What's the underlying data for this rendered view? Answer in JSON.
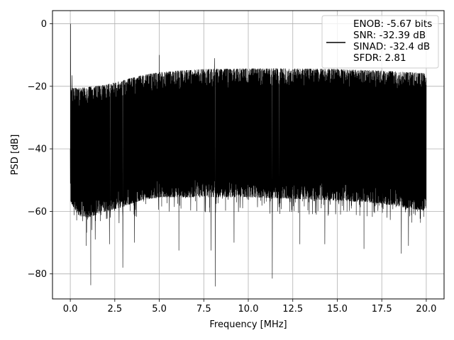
{
  "chart_data": {
    "type": "line",
    "title": "",
    "xlabel": "Frequency [MHz]",
    "ylabel": "PSD [dB]",
    "xlim": [
      -1.0,
      21.0
    ],
    "ylim": [
      -88.0,
      4.2
    ],
    "xticks": [
      0.0,
      2.5,
      5.0,
      7.5,
      10.0,
      12.5,
      15.0,
      17.5,
      20.0
    ],
    "xtick_labels": [
      "0.0",
      "2.5",
      "5.0",
      "7.5",
      "10.0",
      "12.5",
      "15.0",
      "17.5",
      "20.0"
    ],
    "yticks": [
      0,
      -20,
      -40,
      -60,
      -80
    ],
    "ytick_labels": [
      "0",
      "−20",
      "−40",
      "−60",
      "−80"
    ],
    "grid": true,
    "legend_position": "top-right",
    "legend_lines": [
      "ENOB: -5.67 bits",
      "SNR: -32.39 dB",
      "SINAD: -32.4 dB",
      "SFDR: 2.81"
    ],
    "series_color": "#000000",
    "series": [
      {
        "name": "ENOB: -5.67 bits",
        "envelope": {
          "x": [
            0.0,
            0.5,
            1.0,
            2.0,
            3.0,
            4.0,
            5.0,
            6.0,
            7.5,
            10.0,
            12.5,
            15.0,
            17.5,
            20.0
          ],
          "upper": [
            -20.5,
            -20.5,
            -20.2,
            -19.5,
            -18.0,
            -16.5,
            -15.5,
            -15.0,
            -14.5,
            -14.3,
            -14.3,
            -14.5,
            -15.0,
            -15.8
          ],
          "lower": [
            -57.0,
            -61.5,
            -62.0,
            -60.0,
            -58.5,
            -56.5,
            -55.5,
            -55.5,
            -55.5,
            -55.5,
            -56.0,
            -56.5,
            -57.5,
            -60.0
          ]
        },
        "peaks": [
          {
            "x": 0.02,
            "y": 0.0
          },
          {
            "x": 0.1,
            "y": -16.5
          },
          {
            "x": 5.0,
            "y": -10.0
          },
          {
            "x": 8.1,
            "y": -11.0
          }
        ],
        "dips": [
          {
            "x": 1.15,
            "y": -83.6
          },
          {
            "x": 0.9,
            "y": -71.0
          },
          {
            "x": 1.4,
            "y": -69.0
          },
          {
            "x": 2.2,
            "y": -70.5
          },
          {
            "x": 2.95,
            "y": -78.0
          },
          {
            "x": 3.6,
            "y": -70.0
          },
          {
            "x": 6.1,
            "y": -72.5
          },
          {
            "x": 7.9,
            "y": -72.5
          },
          {
            "x": 8.15,
            "y": -84.0
          },
          {
            "x": 9.2,
            "y": -70.0
          },
          {
            "x": 11.35,
            "y": -81.5
          },
          {
            "x": 12.9,
            "y": -70.5
          },
          {
            "x": 14.3,
            "y": -70.5
          },
          {
            "x": 16.5,
            "y": -72.0
          },
          {
            "x": 18.6,
            "y": -73.5
          },
          {
            "x": 19.0,
            "y": -71.0
          }
        ]
      }
    ]
  }
}
